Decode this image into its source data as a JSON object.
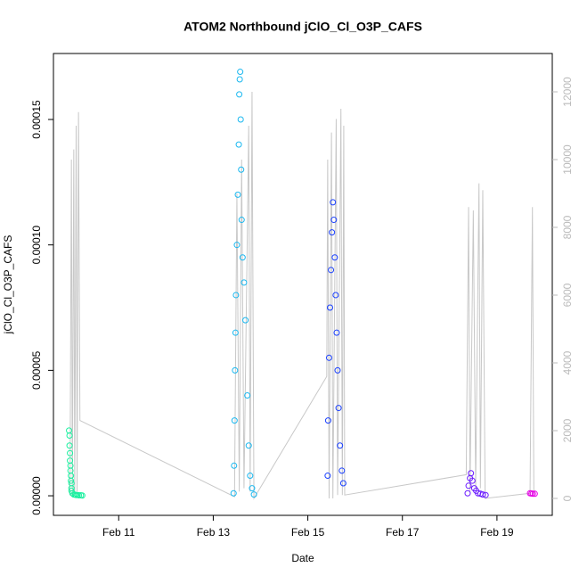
{
  "chart_data": {
    "type": "scatter",
    "title": "ATOM2 Northbound jClO_Cl_O3P_CAFS",
    "x_label": "Date",
    "y_label": "jClO_Cl_O3P_CAFS",
    "xlim": [
      9.62,
      20.17
    ],
    "xticks": [
      {
        "value": 11,
        "label": "Feb 11"
      },
      {
        "value": 13,
        "label": "Feb 13"
      },
      {
        "value": 15,
        "label": "Feb 15"
      },
      {
        "value": 17,
        "label": "Feb 17"
      },
      {
        "value": 19,
        "label": "Feb 19"
      }
    ],
    "ylim": [
      -7.8e-06,
      0.0001763
    ],
    "yticks": [
      {
        "value": 0,
        "label": "0.00000"
      },
      {
        "value": 5e-05,
        "label": "0.00005"
      },
      {
        "value": 0.0001,
        "label": "0.00010"
      },
      {
        "value": 0.00015,
        "label": "0.00015"
      }
    ],
    "y2lim": [
      -500,
      13132
    ],
    "y2ticks": [
      0,
      2000,
      4000,
      6000,
      8000,
      10000,
      12000
    ],
    "y2_color": "#bbbbbb",
    "series": [
      {
        "color": "#1cf0a0",
        "x": [
          9.95,
          9.96,
          9.96,
          9.97,
          9.97,
          9.98,
          9.98,
          9.99,
          9.99,
          10.0,
          10.0,
          10.0,
          10.02,
          10.05,
          10.08,
          10.1,
          10.13,
          10.16,
          10.2,
          10.23
        ],
        "values": [
          2.6e-05,
          2.4e-05,
          2e-05,
          1.7e-05,
          1.4e-05,
          1.2e-05,
          1e-05,
          8e-06,
          6e-06,
          5e-06,
          3e-06,
          2e-06,
          1e-06,
          5e-07,
          4e-07,
          3e-07,
          3e-07,
          2e-07,
          2e-07,
          1e-07
        ]
      },
      {
        "color": "#1ab8f0",
        "x": [
          13.43,
          13.44,
          13.45,
          13.46,
          13.47,
          13.48,
          13.5,
          13.52,
          13.54,
          13.55,
          13.56,
          13.57,
          13.58,
          13.59,
          13.6,
          13.62,
          13.65,
          13.68,
          13.72,
          13.75,
          13.78,
          13.82,
          13.86
        ],
        "values": [
          1e-06,
          1.2e-05,
          3e-05,
          5e-05,
          6.5e-05,
          8e-05,
          0.0001,
          0.00012,
          0.00014,
          0.00016,
          0.000166,
          0.000169,
          0.00015,
          0.00013,
          0.00011,
          9.5e-05,
          8.5e-05,
          7e-05,
          4e-05,
          2e-05,
          8e-06,
          3e-06,
          5e-07
        ]
      },
      {
        "color": "#1a40ff",
        "x": [
          15.42,
          15.43,
          15.45,
          15.47,
          15.49,
          15.51,
          15.53,
          15.55,
          15.57,
          15.59,
          15.61,
          15.63,
          15.65,
          15.68,
          15.72,
          15.75
        ],
        "values": [
          8e-06,
          3e-05,
          5.5e-05,
          7.5e-05,
          9e-05,
          0.000105,
          0.000117,
          0.00011,
          9.5e-05,
          8e-05,
          6.5e-05,
          5e-05,
          3.5e-05,
          2e-05,
          1e-05,
          5e-06
        ]
      },
      {
        "color": "#6a1aff",
        "x": [
          18.38,
          18.4,
          18.43,
          18.45,
          18.48,
          18.52,
          18.56,
          18.6,
          18.65,
          18.7,
          18.76
        ],
        "values": [
          1e-06,
          4e-06,
          7e-06,
          9e-06,
          6e-06,
          3e-06,
          2e-06,
          1e-06,
          8e-07,
          5e-07,
          3e-07
        ]
      },
      {
        "color": "#e600e6",
        "x": [
          19.7,
          19.73,
          19.76,
          19.8
        ],
        "values": [
          1e-06,
          9e-07,
          8e-07,
          8e-07
        ]
      },
      {
        "color": "#c8c8c8",
        "axis": "y2",
        "mode": "line",
        "x": [
          9.97,
          10.0,
          10.02,
          10.05,
          10.07,
          10.1,
          10.12,
          10.15,
          10.18,
          13.45,
          13.5,
          13.55,
          13.6,
          13.65,
          13.75,
          13.78,
          13.82,
          13.86,
          15.4,
          15.42,
          15.45,
          15.5,
          15.53,
          15.6,
          15.63,
          15.7,
          15.73,
          15.76,
          15.78,
          18.35,
          18.4,
          18.43,
          18.5,
          18.55,
          18.62,
          18.65,
          18.7,
          18.75,
          19.7,
          19.75,
          19.78
        ],
        "values": [
          100,
          10000,
          100,
          10300,
          100,
          11000,
          200,
          11400,
          2300,
          50,
          9000,
          200,
          10000,
          300,
          11000,
          200,
          12000,
          0,
          3600,
          10000,
          0,
          10800,
          0,
          11200,
          100,
          11500,
          100,
          11000,
          100,
          700,
          8600,
          200,
          8500,
          300,
          9300,
          300,
          9100,
          0,
          150,
          8600,
          150
        ]
      }
    ]
  }
}
